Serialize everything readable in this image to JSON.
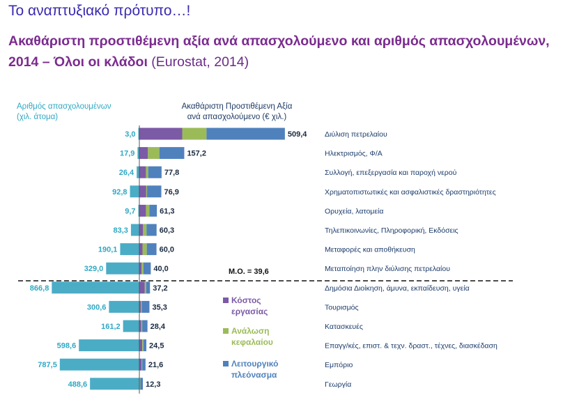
{
  "header": {
    "title": "Το αναπτυξιακό πρότυπο…!",
    "subtitle_main": "Ακαθάριστη προστιθέμενη αξία ανά απασχολούμενο και αριθμός απασχολουμένων, 2014 – Όλοι οι κλάδοι",
    "subtitle_source": " (Eurostat, 2014)"
  },
  "chart_labels": {
    "left_header_1": "Αριθμός απασχολουμένων",
    "left_header_2": "(χιλ. άτομα)",
    "right_header_1": "Ακαθάριστη Προστιθέμενη Αξία",
    "right_header_2": "ανά απασχολούμενο (€ χιλ.)",
    "average_label": "Μ.Ο. = 39,6"
  },
  "colors": {
    "labor": "#7b5aa6",
    "capital": "#9bbb59",
    "surplus": "#4f81bd",
    "employment": "#4bacc6",
    "left_text": "#2fa8c4"
  },
  "chart_data": {
    "type": "bar",
    "layout": "butterfly-stacked-horizontal",
    "categories": [
      "Διύλιση πετρελαίου",
      "Ηλεκτρισμός, Φ/Α",
      "Συλλογή, επεξεργασία και παροχή νερού",
      "Χρηματοπιστωτικές και ασφαλιστικές δραστηριότητες",
      "Ορυχεία, λατομεία",
      "Τηλεπικοινωνίες, Πληροφορική, Εκδόσεις",
      "Μεταφορές και αποθήκευση",
      "Μεταποίηση πλην διύλισης πετρελαίου",
      "Δημόσια Διοίκηση, άμυνα, εκπαίδευση, υγεία",
      "Τουρισμός",
      "Κατασκευές",
      "Επαγγ/κές, επιστ. & τεχν. δραστ., τέχνες, διασκέδαση",
      "Εμπόριο",
      "Γεωργία"
    ],
    "employment": [
      3.0,
      17.9,
      26.4,
      92.8,
      9.7,
      83.3,
      190.1,
      329.0,
      866.8,
      300.6,
      161.2,
      598.6,
      787.5,
      488.6
    ],
    "employment_labels": [
      "3,0",
      "17,9",
      "26,4",
      "92,8",
      "9,7",
      "83,3",
      "190,1",
      "329,0",
      "866,8",
      "300,6",
      "161,2",
      "598,6",
      "787,5",
      "488,6"
    ],
    "gva_per_employee": [
      509.4,
      157.2,
      77.8,
      76.9,
      61.3,
      60.3,
      60.0,
      40.0,
      37.2,
      35.3,
      28.4,
      24.5,
      21.6,
      12.3
    ],
    "gva_labels": [
      "509,4",
      "157,2",
      "77,8",
      "76,9",
      "61,3",
      "60,3",
      "60,0",
      "40,0",
      "37,2",
      "35,3",
      "28,4",
      "24,5",
      "21,6",
      "12,3"
    ],
    "series": [
      {
        "name": "Κόστος εργασίας",
        "legend_lines": [
          "Κόστος",
          "εργασίας"
        ],
        "values": [
          150,
          30,
          23,
          24,
          23,
          13,
          11,
          8,
          19,
          5,
          6,
          10,
          8,
          2
        ]
      },
      {
        "name": "Ανάλωση κεφαλαίου",
        "legend_lines": [
          "Ανάλωση",
          "κεφαλαίου"
        ],
        "values": [
          85,
          40,
          8,
          3,
          12,
          12,
          15,
          6,
          5,
          3,
          4,
          4,
          2,
          1.5
        ]
      },
      {
        "name": "Λειτουργικό πλεόνασμα",
        "legend_lines": [
          "Λειτουργικό",
          "πλεόνασμα"
        ],
        "values": [
          274.4,
          87.2,
          46.8,
          49.9,
          26.3,
          35.3,
          34,
          26,
          13.2,
          27.3,
          18.4,
          10.5,
          11.6,
          8.8
        ]
      }
    ],
    "average_gva": 39.6
  }
}
